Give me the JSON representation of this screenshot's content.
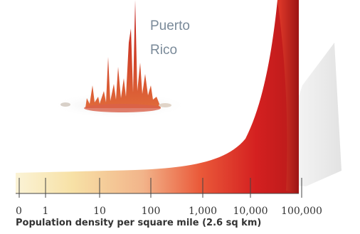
{
  "chart_data": {
    "type": "area",
    "place_label": [
      "Puerto",
      "Rico"
    ],
    "xlabel": "Population density per square mile (2.6 sq km)",
    "x_scale": "log",
    "categories": [
      "0",
      "1",
      "10",
      "100",
      "1,000",
      "10,000",
      "100,000"
    ],
    "colors": {
      "low": "#f8ecc0",
      "mid": "#f2a07a",
      "high": "#d42020",
      "deep": "#a81818",
      "label": "#7a8a99"
    }
  }
}
